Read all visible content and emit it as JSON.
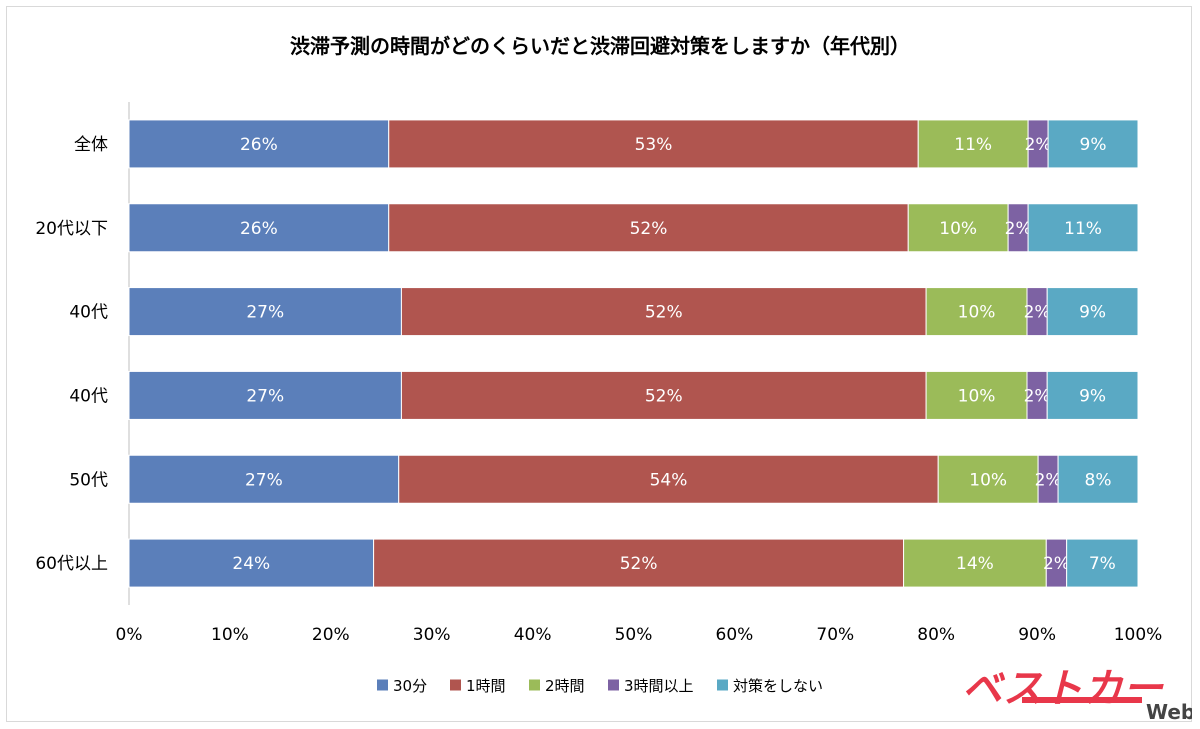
{
  "chart_data": {
    "type": "bar",
    "orientation": "horizontal",
    "stacked": true,
    "title": "渋滞予測の時間がどのくらいだと渋滞回避対策をしますか（年代別）",
    "categories": [
      "全体",
      "20代以下",
      "40代",
      "40代",
      "50代",
      "60代以上"
    ],
    "series": [
      {
        "name": "30分",
        "color": "#5b7fba",
        "values": [
          26,
          26,
          27,
          27,
          27,
          24
        ]
      },
      {
        "name": "1時間",
        "color": "#b0554f",
        "values": [
          53,
          52,
          52,
          52,
          54,
          52
        ]
      },
      {
        "name": "2時間",
        "color": "#9bbb59",
        "values": [
          11,
          10,
          10,
          10,
          10,
          14
        ]
      },
      {
        "name": "3時間以上",
        "color": "#7d62a3",
        "values": [
          2,
          2,
          2,
          2,
          2,
          2
        ]
      },
      {
        "name": "対策をしない",
        "color": "#5aa9c4",
        "values": [
          9,
          11,
          9,
          9,
          8,
          7
        ]
      }
    ],
    "value_suffix": "%",
    "xlim": [
      0,
      100
    ],
    "x_ticks": [
      "0%",
      "10%",
      "20%",
      "30%",
      "40%",
      "50%",
      "60%",
      "70%",
      "80%",
      "90%",
      "100%"
    ],
    "xlabel": "",
    "ylabel": "",
    "legend_position": "bottom"
  },
  "watermark": {
    "main": "ベストカー",
    "sub": "Web"
  }
}
